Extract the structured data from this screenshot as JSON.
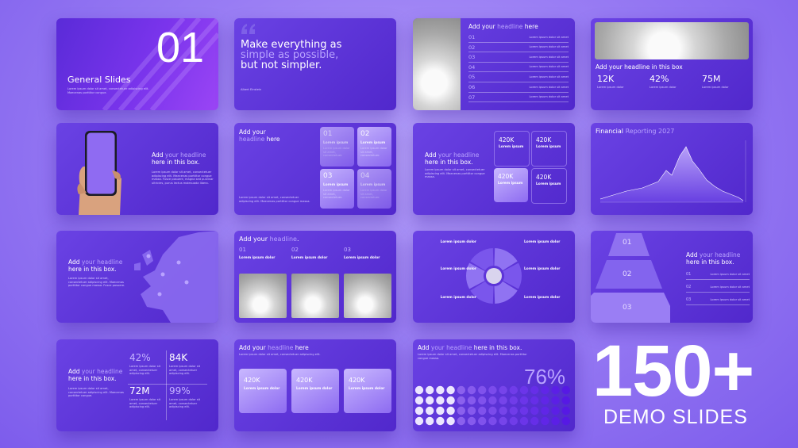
{
  "slides": [
    {
      "number": "01",
      "title": "General Slides",
      "body": "Lorem ipsum dolor sit amet, consectetuer adipiscing elit. Maecenas porttitor congue."
    },
    {
      "quote": [
        "Make everything as",
        "simple as possible,",
        "but not simpler."
      ],
      "author": "Albert Einstein"
    },
    {
      "headline": [
        "Add your ",
        "headline",
        " here"
      ],
      "rows": [
        {
          "n": "01",
          "text": "Lorem ipsum dolor sit amet"
        },
        {
          "n": "02",
          "text": "Lorem ipsum dolor sit amet"
        },
        {
          "n": "03",
          "text": "Lorem ipsum dolor sit amet"
        },
        {
          "n": "04",
          "text": "Lorem ipsum dolor sit amet"
        },
        {
          "n": "05",
          "text": "Lorem ipsum dolor sit amet"
        },
        {
          "n": "06",
          "text": "Lorem ipsum dolor sit amet"
        },
        {
          "n": "07",
          "text": "Lorem ipsum dolor sit amet"
        }
      ]
    },
    {
      "headline": "Add your headline in this box",
      "stats": [
        {
          "value": "12K",
          "label": "Lorem ipsum dolor"
        },
        {
          "value": "42%",
          "label": "Lorem ipsum dolor"
        },
        {
          "value": "75M",
          "label": "Lorem ipsum dolor"
        }
      ]
    },
    {
      "headline": [
        "Add ",
        "your headline",
        " here in this box."
      ],
      "body": "Lorem ipsum dolor sit amet, consectetuer adipiscing elit. Maecenas porttitor congue massa. Fusce posuere, magna sed pulvinar ultricies, purus lectus malesuada libero."
    },
    {
      "headline": [
        "Add your ",
        "headline",
        " here"
      ],
      "body": "Lorem ipsum dolor sit amet, consectetuer adipiscing elit. Maecenas porttitor congue massa.",
      "boxes": [
        {
          "n": "01",
          "title": "Lorem ipsum",
          "body": "Lorem ipsum dolor sit amet, consectetuer."
        },
        {
          "n": "02",
          "title": "Lorem ipsum",
          "body": "Lorem ipsum dolor sit amet, consectetuer."
        },
        {
          "n": "03",
          "title": "Lorem ipsum",
          "body": "Lorem ipsum dolor sit amet, consectetuer."
        },
        {
          "n": "04",
          "title": "Lorem ipsum",
          "body": "Lorem ipsum dolor sit amet, consectetuer."
        }
      ]
    },
    {
      "headline": [
        "Add ",
        "your headline",
        " here in this box."
      ],
      "body": "Lorem ipsum dolor sit amet, consectetuer adipiscing elit. Maecenas porttitor congue massa.",
      "boxes": [
        {
          "value": "420K",
          "label": "Lorem ipsum"
        },
        {
          "value": "420K",
          "label": "Lorem ipsum"
        },
        {
          "value": "420K",
          "label": "Lorem ipsum"
        },
        {
          "value": "420K",
          "label": "Lorem ipsum"
        }
      ]
    },
    {
      "title": [
        "Financial ",
        "Reporting 2027"
      ]
    },
    {
      "headline": [
        "Add ",
        "your headline",
        " here in this box."
      ],
      "body": "Lorem ipsum dolor sit amet, consectetuer adipiscing elit. Maecenas porttitor congue massa. Fusce posuere."
    },
    {
      "headline": [
        "Add your ",
        "headline",
        "."
      ],
      "cols": [
        {
          "n": "01",
          "label": "Lorem ipsum dolor"
        },
        {
          "n": "02",
          "label": "Lorem ipsum dolor"
        },
        {
          "n": "03",
          "label": "Lorem ipsum dolor"
        }
      ]
    },
    {
      "labels": [
        "Lorem ipsum dolor",
        "Lorem ipsum dolor",
        "Lorem ipsum dolor",
        "Lorem ipsum dolor",
        "Lorem ipsum dolor",
        "Lorem ipsum dolor"
      ]
    },
    {
      "tiers": [
        "01",
        "02",
        "03"
      ],
      "headline": [
        "Add ",
        "your headline",
        " here in this box."
      ],
      "rows": [
        {
          "n": "01",
          "text": "Lorem ipsum dolor sit amet"
        },
        {
          "n": "02",
          "text": "Lorem ipsum dolor sit amet"
        },
        {
          "n": "03",
          "text": "Lorem ipsum dolor sit amet"
        }
      ]
    },
    {
      "headline": [
        "Add ",
        "your headline",
        " here in this box."
      ],
      "body": "Lorem ipsum dolor sit amet, consectetuer adipiscing elit. Maecenas porttitor congue.",
      "stats": [
        {
          "value": "42%",
          "label": "Lorem ipsum dolor sit amet, consectetuer adipiscing elit."
        },
        {
          "value": "84K",
          "label": "Lorem ipsum dolor sit amet, consectetuer adipiscing elit."
        },
        {
          "value": "72M",
          "label": "Lorem ipsum dolor sit amet, consectetuer adipiscing elit."
        },
        {
          "value": "99%",
          "label": "Lorem ipsum dolor sit amet, consectetuer adipiscing elit."
        }
      ]
    },
    {
      "headline": [
        "Add your ",
        "headline",
        " here"
      ],
      "body": "Lorem ipsum dolor sit amet, consectetuer adipiscing elit.",
      "boxes": [
        {
          "value": "420K",
          "label": "Lorem ipsum dolor"
        },
        {
          "value": "420K",
          "label": "Lorem ipsum dolor"
        },
        {
          "value": "420K",
          "label": "Lorem ipsum dolor"
        }
      ]
    },
    {
      "headline": [
        "Add ",
        "your headline",
        " here in this box."
      ],
      "body": "Lorem ipsum dolor sit amet, consectetuer adipiscing elit. Maecenas porttitor congue massa.",
      "percent": "76%"
    }
  ],
  "promo": {
    "count": "150+",
    "caption": "DEMO SLIDES"
  }
}
